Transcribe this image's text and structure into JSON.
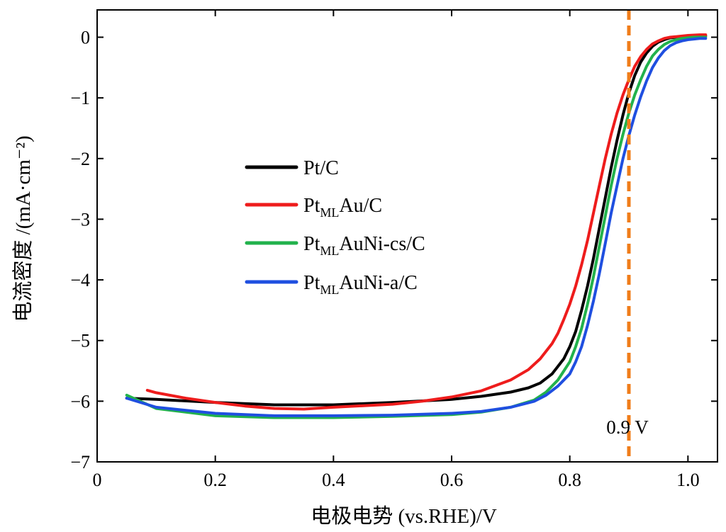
{
  "chart_data": {
    "type": "line",
    "title": "",
    "xlabel": "电极电势 (vs.RHE)/V",
    "ylabel": "电流密度 /(mA·cm⁻²)",
    "xlim": [
      0,
      1.05
    ],
    "ylim": [
      -7,
      0.45
    ],
    "xticks": [
      0,
      0.2,
      0.4,
      0.6,
      0.8,
      1.0
    ],
    "xtick_labels": [
      "0",
      "0.2",
      "0.4",
      "0.6",
      "0.8",
      "1.0"
    ],
    "yticks": [
      0,
      -1,
      -2,
      -3,
      -4,
      -5,
      -6,
      -7
    ],
    "ytick_labels": [
      "0",
      "−1",
      "−2",
      "−3",
      "−4",
      "−5",
      "−6",
      "−7"
    ],
    "grid": false,
    "legend_position": "center-left",
    "series": [
      {
        "name": "Pt/C",
        "legend_main": "Pt/C",
        "legend_sub": "",
        "legend_rest": "",
        "color": "#000000",
        "x": [
          0.05,
          0.1,
          0.2,
          0.3,
          0.4,
          0.5,
          0.6,
          0.65,
          0.7,
          0.73,
          0.75,
          0.77,
          0.79,
          0.8,
          0.81,
          0.82,
          0.83,
          0.84,
          0.85,
          0.86,
          0.87,
          0.88,
          0.89,
          0.9,
          0.91,
          0.92,
          0.93,
          0.94,
          0.95,
          0.96,
          0.97,
          0.98,
          0.99,
          1.0,
          1.01,
          1.02,
          1.03
        ],
        "y": [
          -5.95,
          -5.97,
          -6.02,
          -6.06,
          -6.06,
          -6.02,
          -5.97,
          -5.92,
          -5.85,
          -5.78,
          -5.7,
          -5.55,
          -5.3,
          -5.1,
          -4.85,
          -4.5,
          -4.1,
          -3.65,
          -3.15,
          -2.65,
          -2.15,
          -1.7,
          -1.28,
          -0.92,
          -0.63,
          -0.41,
          -0.26,
          -0.15,
          -0.08,
          -0.04,
          -0.01,
          0.0,
          0.01,
          0.02,
          0.02,
          0.02,
          0.02
        ]
      },
      {
        "name": "PtMLAu/C",
        "legend_main": "Pt",
        "legend_sub": "ML",
        "legend_rest": "Au/C",
        "color": "#ee1c1c",
        "x": [
          0.085,
          0.1,
          0.15,
          0.2,
          0.25,
          0.3,
          0.35,
          0.4,
          0.5,
          0.55,
          0.6,
          0.65,
          0.7,
          0.73,
          0.75,
          0.77,
          0.78,
          0.79,
          0.8,
          0.81,
          0.82,
          0.83,
          0.84,
          0.85,
          0.86,
          0.87,
          0.88,
          0.89,
          0.9,
          0.91,
          0.92,
          0.93,
          0.94,
          0.95,
          0.96,
          0.97,
          0.98,
          1.0,
          1.02,
          1.03
        ],
        "y": [
          -5.82,
          -5.86,
          -5.95,
          -6.02,
          -6.08,
          -6.12,
          -6.13,
          -6.1,
          -6.05,
          -6.0,
          -5.93,
          -5.83,
          -5.65,
          -5.48,
          -5.3,
          -5.05,
          -4.88,
          -4.65,
          -4.4,
          -4.1,
          -3.75,
          -3.35,
          -2.9,
          -2.45,
          -2.0,
          -1.6,
          -1.25,
          -0.95,
          -0.7,
          -0.48,
          -0.32,
          -0.2,
          -0.11,
          -0.06,
          -0.02,
          0.0,
          0.01,
          0.03,
          0.04,
          0.04
        ]
      },
      {
        "name": "PtMLAuNi-cs/C",
        "legend_main": "Pt",
        "legend_sub": "ML",
        "legend_rest": "AuNi-cs/C",
        "color": "#22b24c",
        "x": [
          0.05,
          0.1,
          0.2,
          0.3,
          0.4,
          0.5,
          0.6,
          0.65,
          0.7,
          0.74,
          0.76,
          0.78,
          0.8,
          0.81,
          0.82,
          0.83,
          0.84,
          0.85,
          0.86,
          0.87,
          0.88,
          0.89,
          0.9,
          0.91,
          0.92,
          0.93,
          0.94,
          0.95,
          0.96,
          0.97,
          0.98,
          0.99,
          1.0,
          1.01,
          1.02,
          1.03
        ],
        "y": [
          -5.9,
          -6.12,
          -6.24,
          -6.27,
          -6.27,
          -6.25,
          -6.22,
          -6.18,
          -6.1,
          -5.98,
          -5.85,
          -5.65,
          -5.35,
          -5.1,
          -4.8,
          -4.4,
          -3.95,
          -3.45,
          -2.95,
          -2.45,
          -2.0,
          -1.6,
          -1.25,
          -0.95,
          -0.7,
          -0.48,
          -0.31,
          -0.2,
          -0.12,
          -0.07,
          -0.04,
          -0.02,
          -0.01,
          0.0,
          0.0,
          0.0
        ]
      },
      {
        "name": "PtMLAuNi-a/C",
        "legend_main": "Pt",
        "legend_sub": "ML",
        "legend_rest": "AuNi-a/C",
        "color": "#1f4fe0",
        "x": [
          0.05,
          0.1,
          0.2,
          0.3,
          0.4,
          0.5,
          0.6,
          0.65,
          0.7,
          0.74,
          0.76,
          0.78,
          0.8,
          0.81,
          0.82,
          0.83,
          0.84,
          0.85,
          0.86,
          0.87,
          0.88,
          0.89,
          0.9,
          0.91,
          0.92,
          0.93,
          0.94,
          0.95,
          0.96,
          0.97,
          0.98,
          0.99,
          1.0,
          1.01,
          1.02,
          1.03
        ],
        "y": [
          -5.95,
          -6.1,
          -6.2,
          -6.24,
          -6.24,
          -6.23,
          -6.2,
          -6.17,
          -6.1,
          -6.0,
          -5.9,
          -5.75,
          -5.55,
          -5.35,
          -5.1,
          -4.75,
          -4.35,
          -3.9,
          -3.4,
          -2.9,
          -2.45,
          -2.0,
          -1.62,
          -1.28,
          -0.98,
          -0.72,
          -0.5,
          -0.34,
          -0.22,
          -0.14,
          -0.09,
          -0.06,
          -0.04,
          -0.03,
          -0.02,
          -0.02
        ]
      }
    ],
    "reference_line": {
      "x": 0.9,
      "label": "0.9 V",
      "color": "#f07d1a",
      "style": "dashed"
    }
  }
}
